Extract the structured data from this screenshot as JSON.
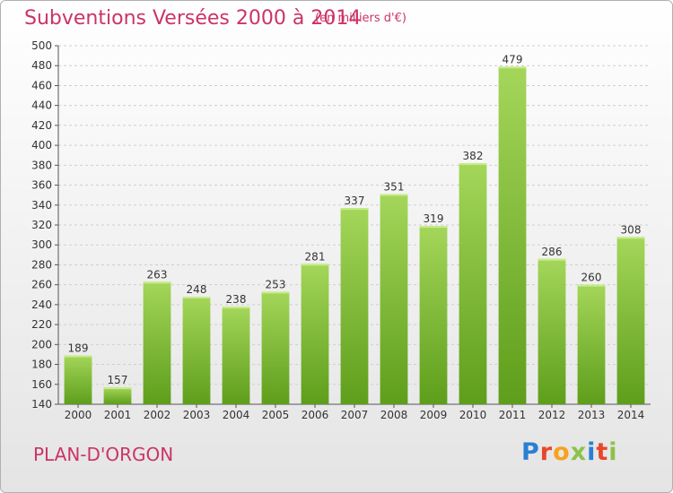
{
  "header": {
    "title": "Subventions Versées 2000 à 2014",
    "unit": "(en milliers d'€)"
  },
  "footer": {
    "place": "PLAN-D'ORGON",
    "logo_text": "Proxiti",
    "logo_colors": [
      "#2a7fd4",
      "#e8472a",
      "#f6a21b",
      "#8bc34a",
      "#2a7fd4",
      "#e8472a",
      "#8bc34a"
    ]
  },
  "colors": {
    "accent": "#cc3366",
    "bar_top": "#a4d65a",
    "bar_bottom": "#5e9e1b",
    "grid": "#cfcfcf"
  },
  "chart_data": {
    "type": "bar",
    "title": "Subventions Versées 2000 à 2014",
    "subtitle": "(en milliers d'€)",
    "xlabel": "",
    "ylabel": "",
    "categories": [
      "2000",
      "2001",
      "2002",
      "2003",
      "2004",
      "2005",
      "2006",
      "2007",
      "2008",
      "2009",
      "2010",
      "2011",
      "2012",
      "2013",
      "2014"
    ],
    "values": [
      189,
      157,
      263,
      248,
      238,
      253,
      281,
      337,
      351,
      319,
      382,
      479,
      286,
      260,
      308
    ],
    "ylim": [
      140,
      500
    ],
    "yticks": [
      140,
      160,
      180,
      200,
      220,
      240,
      260,
      280,
      300,
      320,
      340,
      360,
      380,
      400,
      420,
      440,
      460,
      480,
      500
    ],
    "grid": true,
    "legend": "none"
  }
}
